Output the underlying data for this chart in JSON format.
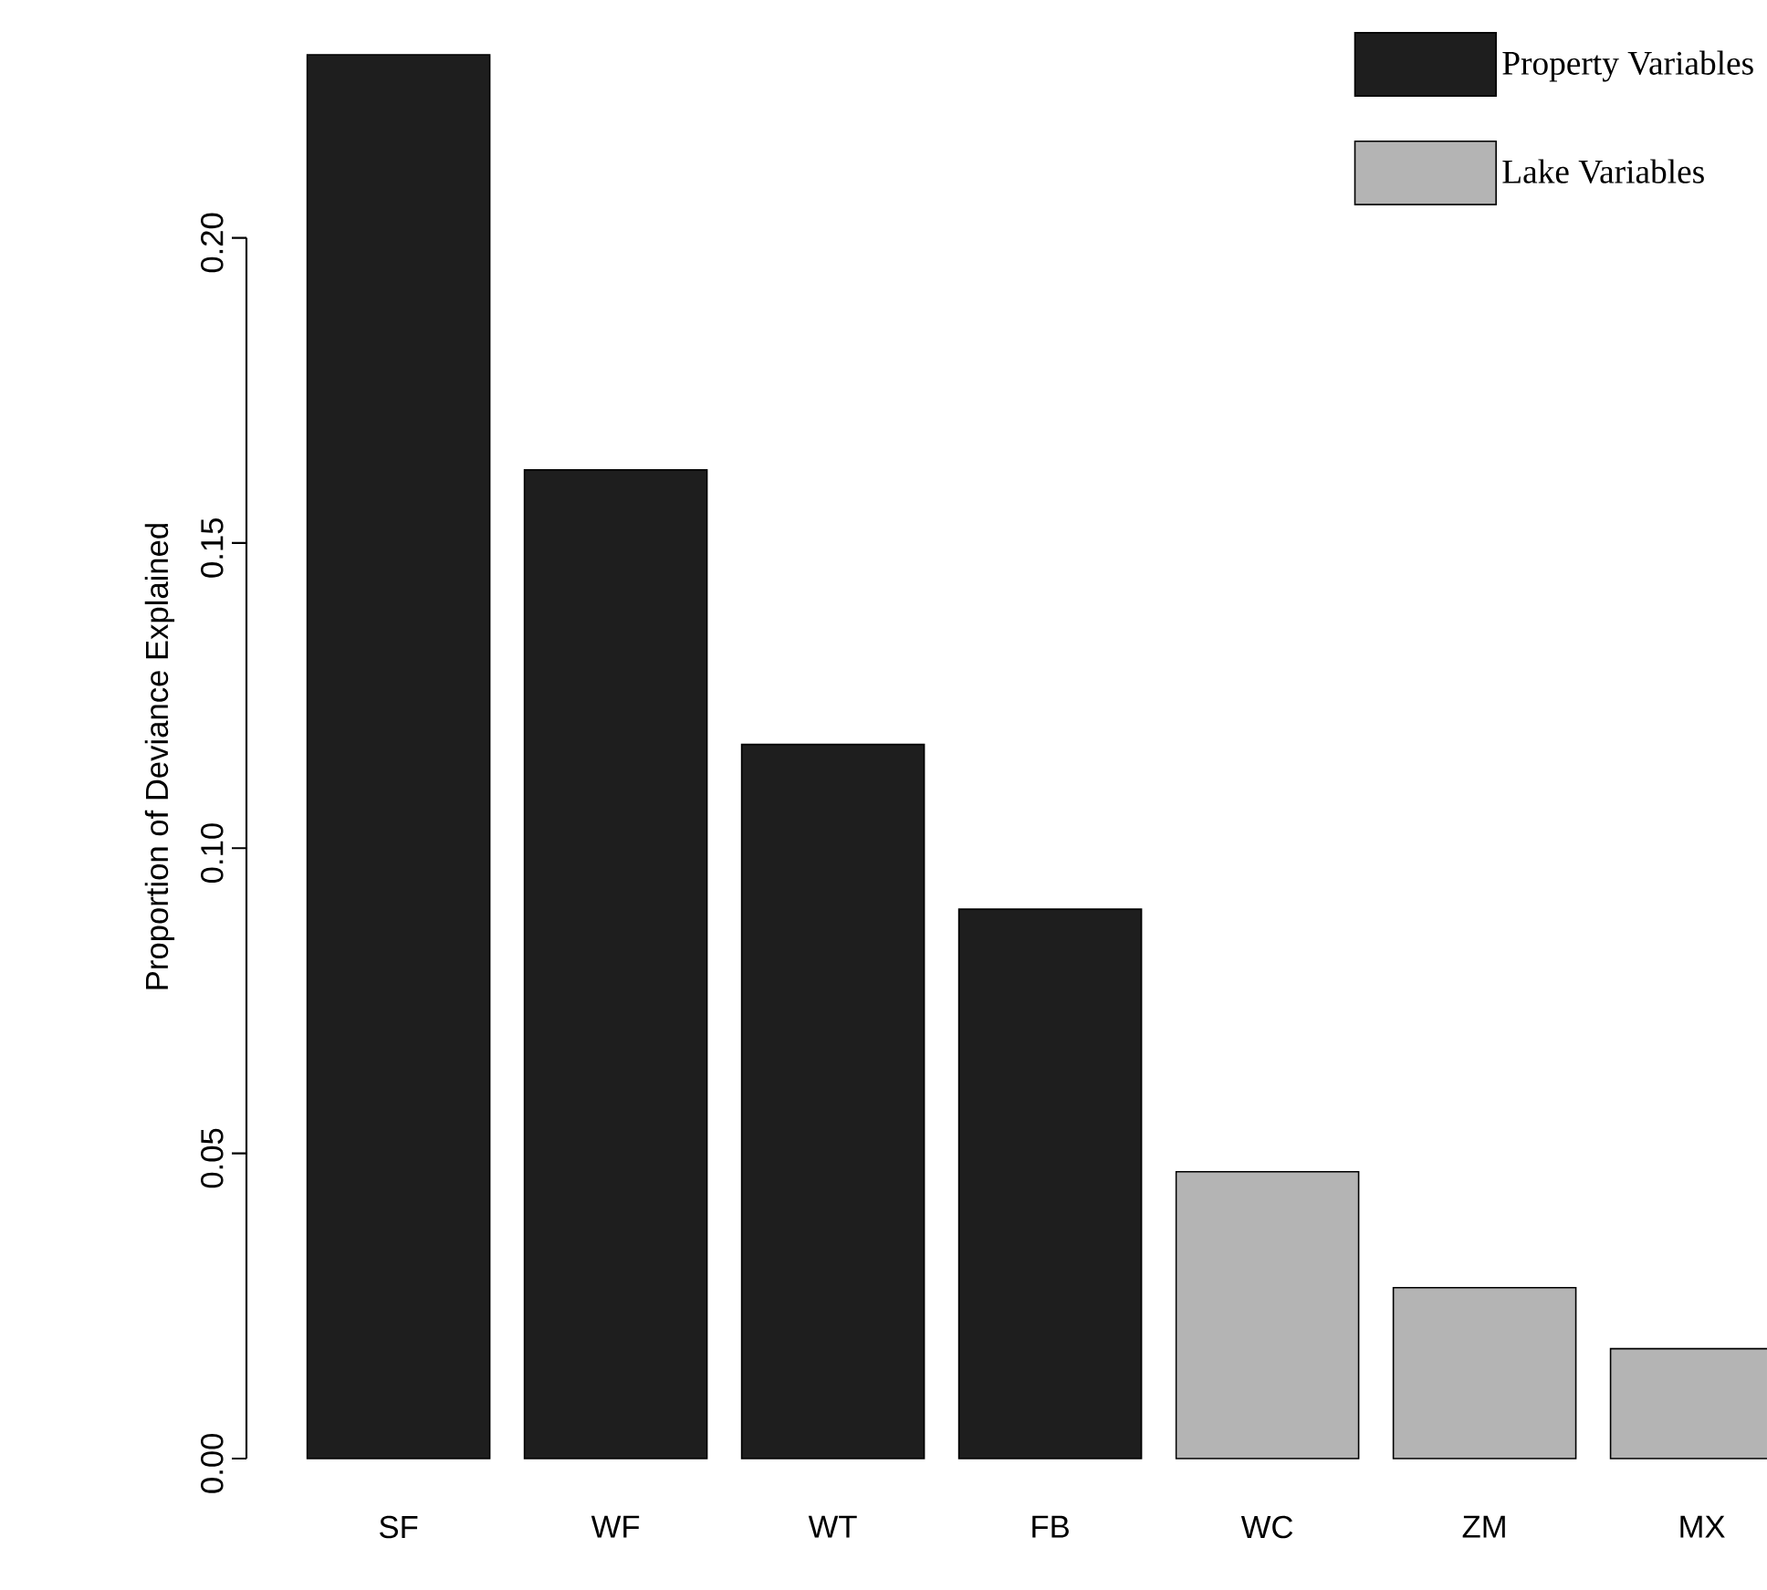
{
  "chart_data": {
    "type": "bar",
    "ylabel": "Proportion of Deviance Explained",
    "categories": [
      "SF",
      "WF",
      "WT",
      "FB",
      "WC",
      "ZM",
      "MX"
    ],
    "series": [
      {
        "name": "Property Variables",
        "color": "#1e1e1e",
        "values": [
          0.23,
          0.162,
          0.117,
          0.09,
          null,
          null,
          null
        ]
      },
      {
        "name": "Lake Variables",
        "color": "#b4b4b4",
        "values": [
          null,
          null,
          null,
          null,
          0.047,
          0.028,
          0.018
        ]
      }
    ],
    "ylim": [
      0,
      0.23
    ],
    "yticks": [
      {
        "value": 0,
        "label": "0.00"
      },
      0.05,
      {
        "value": 0.1,
        "label": "0.10"
      },
      0.15,
      {
        "value": 0.2,
        "label": "0.20"
      }
    ],
    "legend": "top right"
  }
}
